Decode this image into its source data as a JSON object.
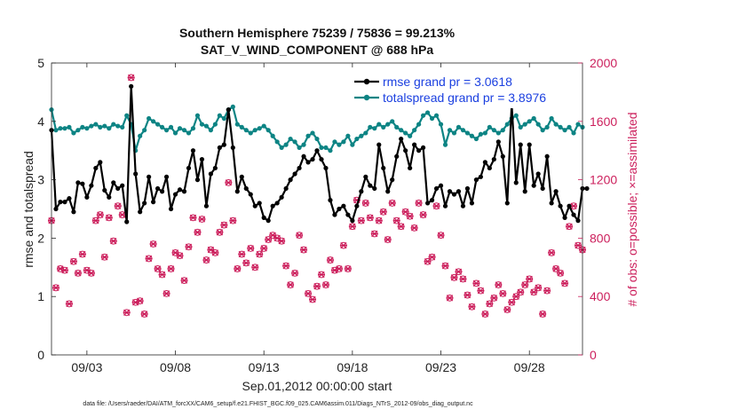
{
  "chart_data": {
    "type": "line",
    "title_line1": "Southern Hemisphere 75239 / 75836 = 99.213%",
    "title_line2": "SAT_V_WIND_COMPONENT @ 688 hPa",
    "ylabel": "rmse and totalspread",
    "ylabel_right": "# of obs: o=possible; ×=assimilated",
    "xlabel": "Sep.01,2012 00:00:00 start",
    "footnote": "data file: /Users/raeder/DAI/ATM_forcXX/CAM6_setup/f.e21.FHIST_BGC.f09_025.CAM6assim.011/Diags_NTrS_2012-09/obs_diag_output.nc",
    "xlim": [
      0,
      30
    ],
    "ylim": [
      0,
      5
    ],
    "ylim_right": [
      0,
      2000
    ],
    "xticks": [
      {
        "x": 2,
        "label": "09/03"
      },
      {
        "x": 7,
        "label": "09/08"
      },
      {
        "x": 12,
        "label": "09/13"
      },
      {
        "x": 17,
        "label": "09/18"
      },
      {
        "x": 22,
        "label": "09/23"
      },
      {
        "x": 27,
        "label": "09/28"
      }
    ],
    "yticks": [
      {
        "v": 0,
        "label": "0"
      },
      {
        "v": 1,
        "label": "1"
      },
      {
        "v": 2,
        "label": "2"
      },
      {
        "v": 3,
        "label": "3"
      },
      {
        "v": 4,
        "label": "4"
      },
      {
        "v": 5,
        "label": "5"
      }
    ],
    "yticks_right": [
      {
        "v": 0,
        "label": "0"
      },
      {
        "v": 400,
        "label": "400"
      },
      {
        "v": 800,
        "label": "800"
      },
      {
        "v": 1200,
        "label": "1200"
      },
      {
        "v": 1600,
        "label": "1600"
      },
      {
        "v": 2000,
        "label": "2000"
      }
    ],
    "time_step": 0.25,
    "time_start": 0,
    "series": [
      {
        "name": "rmse",
        "legend": "rmse grand pr = 3.0618",
        "color": "#000000",
        "axis": "left",
        "values": [
          3.85,
          2.5,
          2.62,
          2.62,
          2.68,
          2.45,
          2.95,
          2.93,
          2.7,
          2.9,
          3.2,
          3.3,
          2.82,
          2.7,
          2.95,
          2.85,
          2.9,
          2.28,
          4.6,
          3.1,
          2.45,
          2.6,
          3.05,
          2.62,
          2.85,
          2.8,
          3.05,
          2.5,
          2.75,
          2.83,
          2.8,
          3.2,
          3.5,
          3.0,
          3.35,
          2.55,
          3.1,
          3.2,
          3.55,
          3.6,
          4.2,
          3.55,
          2.8,
          3.05,
          2.85,
          2.75,
          2.55,
          2.6,
          2.35,
          2.3,
          2.55,
          2.6,
          2.7,
          2.85,
          3.0,
          3.1,
          3.2,
          3.4,
          3.3,
          3.35,
          3.5,
          3.35,
          3.2,
          2.65,
          2.4,
          2.5,
          2.55,
          2.4,
          2.3,
          2.55,
          2.8,
          3.05,
          2.9,
          2.85,
          3.6,
          3.2,
          2.8,
          3.0,
          3.4,
          3.7,
          3.5,
          3.2,
          3.6,
          3.5,
          3.55,
          2.6,
          2.65,
          2.85,
          2.9,
          2.55,
          2.8,
          2.75,
          2.8,
          2.55,
          2.85,
          2.6,
          3.0,
          3.05,
          3.3,
          3.2,
          3.35,
          3.65,
          3.4,
          2.6,
          4.3,
          2.95,
          3.6,
          2.8,
          3.6,
          2.9,
          3.1,
          2.85,
          3.4,
          2.6,
          2.8,
          2.55,
          2.35,
          2.55,
          2.4,
          2.3,
          2.85,
          2.85
        ]
      },
      {
        "name": "totalspread",
        "legend": "totalspread grand pr = 3.8976",
        "color": "#0d8484",
        "axis": "left",
        "values": [
          4.2,
          3.85,
          3.88,
          3.88,
          3.9,
          3.8,
          3.85,
          3.9,
          3.88,
          3.92,
          3.95,
          3.9,
          3.92,
          3.88,
          3.95,
          3.92,
          3.9,
          4.1,
          3.95,
          3.5,
          3.75,
          3.85,
          4.05,
          4.0,
          3.95,
          3.9,
          3.85,
          3.9,
          3.8,
          3.88,
          3.85,
          3.8,
          3.88,
          4.1,
          3.95,
          3.92,
          3.85,
          3.95,
          4.1,
          4.05,
          4.2,
          4.25,
          3.95,
          3.9,
          3.85,
          3.8,
          3.85,
          3.88,
          3.92,
          3.85,
          3.75,
          3.65,
          3.55,
          3.6,
          3.7,
          3.65,
          3.55,
          3.6,
          3.75,
          3.8,
          3.7,
          3.55,
          3.55,
          3.5,
          3.65,
          3.6,
          3.65,
          3.75,
          3.6,
          3.7,
          3.75,
          3.8,
          3.9,
          3.88,
          3.95,
          3.9,
          3.95,
          4.0,
          3.9,
          3.85,
          3.8,
          3.75,
          3.85,
          3.95,
          4.1,
          4.15,
          4.05,
          4.1,
          3.95,
          3.6,
          3.85,
          3.8,
          3.9,
          3.85,
          3.8,
          3.75,
          3.7,
          3.78,
          3.8,
          3.9,
          3.85,
          3.8,
          3.85,
          3.95,
          4.05,
          4.1,
          3.9,
          3.95,
          4.0,
          4.05,
          3.95,
          3.85,
          3.9,
          4.05,
          3.95,
          3.9,
          3.85,
          3.9,
          3.8,
          3.95,
          3.9
        ]
      },
      {
        "name": "nobs_possible",
        "marker": "o",
        "color": "#cc1f5c",
        "axis": "right",
        "values": [
          920,
          460,
          590,
          580,
          350,
          640,
          560,
          690,
          580,
          560,
          920,
          960,
          670,
          940,
          780,
          1020,
          960,
          290,
          1900,
          360,
          370,
          280,
          660,
          760,
          590,
          550,
          420,
          590,
          700,
          680,
          510,
          740,
          940,
          840,
          930,
          650,
          720,
          700,
          840,
          890,
          1180,
          920,
          590,
          690,
          630,
          730,
          600,
          690,
          730,
          790,
          820,
          800,
          780,
          610,
          480,
          560,
          820,
          720,
          420,
          380,
          470,
          550,
          480,
          650,
          580,
          590,
          750,
          590,
          880,
          1060,
          920,
          1040,
          940,
          830,
          920,
          980,
          790,
          1040,
          920,
          880,
          980,
          950,
          870,
          1040,
          960,
          640,
          670,
          1020,
          820,
          610,
          390,
          530,
          570,
          520,
          410,
          330,
          490,
          440,
          280,
          350,
          390,
          480,
          420,
          310,
          360,
          400,
          430,
          480,
          520,
          430,
          460,
          280,
          440,
          700,
          590,
          560,
          490,
          880,
          1020,
          750,
          720,
          410,
          640
        ]
      },
      {
        "name": "nobs_assimilated",
        "marker": "x",
        "color": "#cc1f5c",
        "axis": "right",
        "values": [
          920,
          460,
          590,
          580,
          350,
          640,
          560,
          690,
          580,
          560,
          920,
          960,
          670,
          940,
          780,
          1020,
          960,
          290,
          1900,
          360,
          370,
          280,
          660,
          760,
          590,
          550,
          420,
          590,
          700,
          680,
          510,
          740,
          940,
          840,
          930,
          650,
          720,
          700,
          840,
          890,
          1180,
          920,
          590,
          690,
          630,
          730,
          600,
          690,
          730,
          790,
          820,
          800,
          780,
          610,
          480,
          560,
          820,
          720,
          420,
          380,
          470,
          550,
          480,
          650,
          580,
          590,
          750,
          590,
          880,
          1060,
          920,
          1040,
          940,
          830,
          920,
          980,
          790,
          1040,
          920,
          880,
          980,
          950,
          870,
          1040,
          960,
          640,
          670,
          1020,
          820,
          610,
          390,
          530,
          570,
          520,
          410,
          330,
          490,
          440,
          280,
          350,
          390,
          480,
          420,
          310,
          360,
          400,
          430,
          480,
          520,
          430,
          460,
          280,
          440,
          700,
          590,
          560,
          490,
          880,
          1020,
          750,
          720,
          410,
          640
        ]
      }
    ]
  }
}
